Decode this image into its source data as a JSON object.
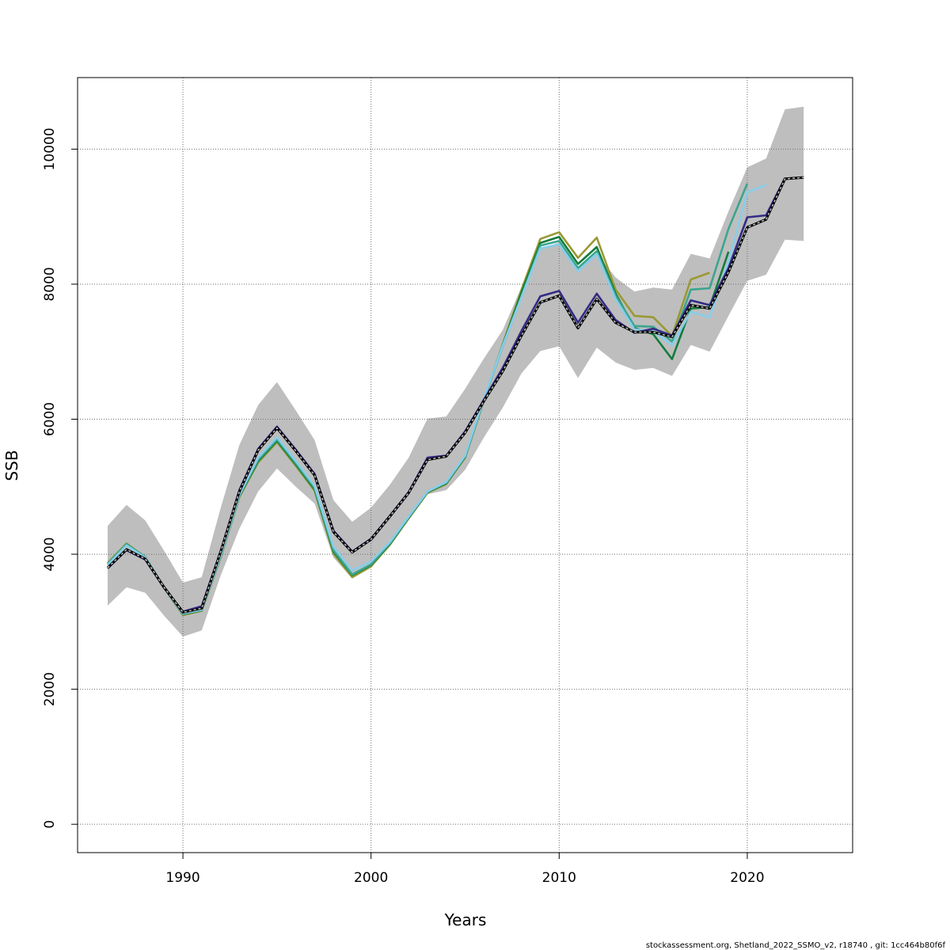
{
  "chart_data": {
    "type": "line",
    "xlabel": "Years",
    "ylabel": "SSB",
    "xlim": [
      1984.4,
      2025.6
    ],
    "ylim": [
      -420,
      11060
    ],
    "x_ticks": [
      1990,
      2000,
      2010,
      2020
    ],
    "y_ticks": [
      0,
      2000,
      4000,
      6000,
      8000,
      10000
    ],
    "grid": true,
    "legend": "none",
    "footer": "stockassessment.org, Shetland_2022_SSMO_v2, r18740 , git: 1cc464b80f6f",
    "band": {
      "color": "#bebebe",
      "x": [
        1986,
        1987,
        1988,
        1989,
        1990,
        1991,
        1992,
        1993,
        1994,
        1995,
        1996,
        1997,
        1998,
        1999,
        2000,
        2001,
        2002,
        2003,
        2004,
        2005,
        2006,
        2007,
        2008,
        2009,
        2010,
        2011,
        2012,
        2013,
        2014,
        2015,
        2016,
        2017,
        2018,
        2019,
        2020,
        2021,
        2022,
        2023
      ],
      "upper": [
        4420,
        4730,
        4500,
        4050,
        3580,
        3660,
        4680,
        5620,
        6210,
        6550,
        6130,
        5690,
        4800,
        4480,
        4690,
        5030,
        5430,
        6010,
        6040,
        6450,
        6900,
        7320,
        7960,
        8520,
        8620,
        8250,
        8450,
        8100,
        7890,
        7950,
        7920,
        8450,
        8380,
        9080,
        9730,
        9860,
        10590,
        10630
      ],
      "lower": [
        3240,
        3510,
        3430,
        3090,
        2780,
        2870,
        3680,
        4380,
        4930,
        5270,
        5000,
        4750,
        3950,
        3640,
        3800,
        4210,
        4540,
        4890,
        4950,
        5250,
        5730,
        6170,
        6680,
        7010,
        7080,
        6610,
        7060,
        6840,
        6730,
        6760,
        6640,
        7100,
        7000,
        7530,
        8050,
        8140,
        8660,
        8640
      ]
    },
    "series": [
      {
        "color": "#000000",
        "dashed": true,
        "x": [
          1986,
          1987,
          1988,
          1989,
          1990,
          1991,
          1992,
          1993,
          1994,
          1995,
          1996,
          1997,
          1998,
          1999,
          2000,
          2001,
          2002,
          2003,
          2004,
          2005,
          2006,
          2007,
          2008,
          2009,
          2010,
          2011,
          2012,
          2013,
          2014,
          2015,
          2016,
          2017,
          2018,
          2019,
          2020,
          2021,
          2022,
          2023
        ],
        "values": [
          3800,
          4070,
          3930,
          3510,
          3140,
          3200,
          4030,
          4930,
          5540,
          5870,
          5530,
          5170,
          4330,
          4030,
          4220,
          4560,
          4910,
          5400,
          5450,
          5800,
          6270,
          6710,
          7240,
          7730,
          7830,
          7350,
          7780,
          7430,
          7290,
          7290,
          7220,
          7690,
          7640,
          8180,
          8840,
          8960,
          9560,
          9580
        ]
      },
      {
        "color": "#322b85",
        "x": [
          1986,
          1987,
          1988,
          1989,
          1990,
          1991,
          1992,
          1993,
          1994,
          1995,
          1996,
          1997,
          1998,
          1999,
          2000,
          2001,
          2002,
          2003,
          2004,
          2005,
          2006,
          2007,
          2008,
          2009,
          2010,
          2011,
          2012,
          2013,
          2014,
          2015,
          2016,
          2017,
          2018,
          2019,
          2020,
          2021,
          2022
        ],
        "values": [
          3790,
          4060,
          3920,
          3500,
          3150,
          3230,
          4040,
          4950,
          5560,
          5890,
          5550,
          5190,
          4350,
          4040,
          4230,
          4570,
          4920,
          5430,
          5460,
          5820,
          6290,
          6760,
          7310,
          7820,
          7900,
          7430,
          7860,
          7470,
          7280,
          7340,
          7240,
          7760,
          7690,
          8240,
          8990,
          9020,
          9570
        ]
      },
      {
        "color": "#87ceeb",
        "x": [
          1986,
          1987,
          1988,
          1989,
          1990,
          1991,
          1992,
          1993,
          1994,
          1995,
          1996,
          1997,
          1998,
          1999,
          2000,
          2001,
          2002,
          2003,
          2004,
          2005,
          2006,
          2007,
          2008,
          2009,
          2010,
          2011,
          2012,
          2013,
          2014,
          2015,
          2016,
          2017,
          2018,
          2019,
          2020,
          2021
        ],
        "values": [
          3840,
          4130,
          3950,
          3500,
          3120,
          3180,
          3980,
          4880,
          5430,
          5730,
          5380,
          5010,
          4110,
          3760,
          3890,
          4180,
          4560,
          4930,
          5070,
          5460,
          6310,
          7090,
          7810,
          8530,
          8590,
          8190,
          8450,
          7780,
          7330,
          7300,
          7100,
          7590,
          7510,
          8330,
          9360,
          9470
        ]
      },
      {
        "color": "#3ba58e",
        "x": [
          1986,
          1987,
          1988,
          1989,
          1990,
          1991,
          1992,
          1993,
          1994,
          1995,
          1996,
          1997,
          1998,
          1999,
          2000,
          2001,
          2002,
          2003,
          2004,
          2005,
          2006,
          2007,
          2008,
          2009,
          2010,
          2011,
          2012,
          2013,
          2014,
          2015,
          2016,
          2017,
          2018,
          2019,
          2020
        ],
        "values": [
          3860,
          4150,
          3960,
          3510,
          3120,
          3170,
          3970,
          4870,
          5400,
          5700,
          5350,
          4980,
          4060,
          3700,
          3850,
          4160,
          4550,
          4930,
          5060,
          5450,
          6300,
          7080,
          7820,
          8570,
          8640,
          8240,
          8490,
          7830,
          7380,
          7370,
          7150,
          7920,
          7940,
          8820,
          9490
        ]
      },
      {
        "color": "#127c3c",
        "x": [
          1986,
          1987,
          1988,
          1989,
          1990,
          1991,
          1992,
          1993,
          1994,
          1995,
          1996,
          1997,
          1998,
          1999,
          2000,
          2001,
          2002,
          2003,
          2004,
          2005,
          2006,
          2007,
          2008,
          2009,
          2010,
          2011,
          2012,
          2013,
          2014,
          2015,
          2016,
          2017,
          2018,
          2019
        ],
        "values": [
          3850,
          4140,
          3950,
          3500,
          3110,
          3170,
          3960,
          4860,
          5380,
          5680,
          5330,
          4960,
          4040,
          3690,
          3840,
          4150,
          4540,
          4920,
          5050,
          5440,
          6290,
          7100,
          7880,
          8610,
          8700,
          8300,
          8550,
          7860,
          7350,
          7260,
          6890,
          7640,
          7660,
          8480
        ]
      },
      {
        "color": "#999933",
        "x": [
          1986,
          1987,
          1988,
          1989,
          1990,
          1991,
          1992,
          1993,
          1994,
          1995,
          1996,
          1997,
          1998,
          1999,
          2000,
          2001,
          2002,
          2003,
          2004,
          2005,
          2006,
          2007,
          2008,
          2009,
          2010,
          2011,
          2012,
          2013,
          2014,
          2015,
          2016,
          2017,
          2018
        ],
        "values": [
          3870,
          4160,
          3960,
          3500,
          3100,
          3160,
          3950,
          4850,
          5360,
          5660,
          5310,
          4940,
          4010,
          3660,
          3820,
          4140,
          4530,
          4910,
          5040,
          5430,
          6290,
          7110,
          7920,
          8670,
          8770,
          8390,
          8690,
          7920,
          7530,
          7510,
          7230,
          8070,
          8170
        ]
      }
    ]
  }
}
